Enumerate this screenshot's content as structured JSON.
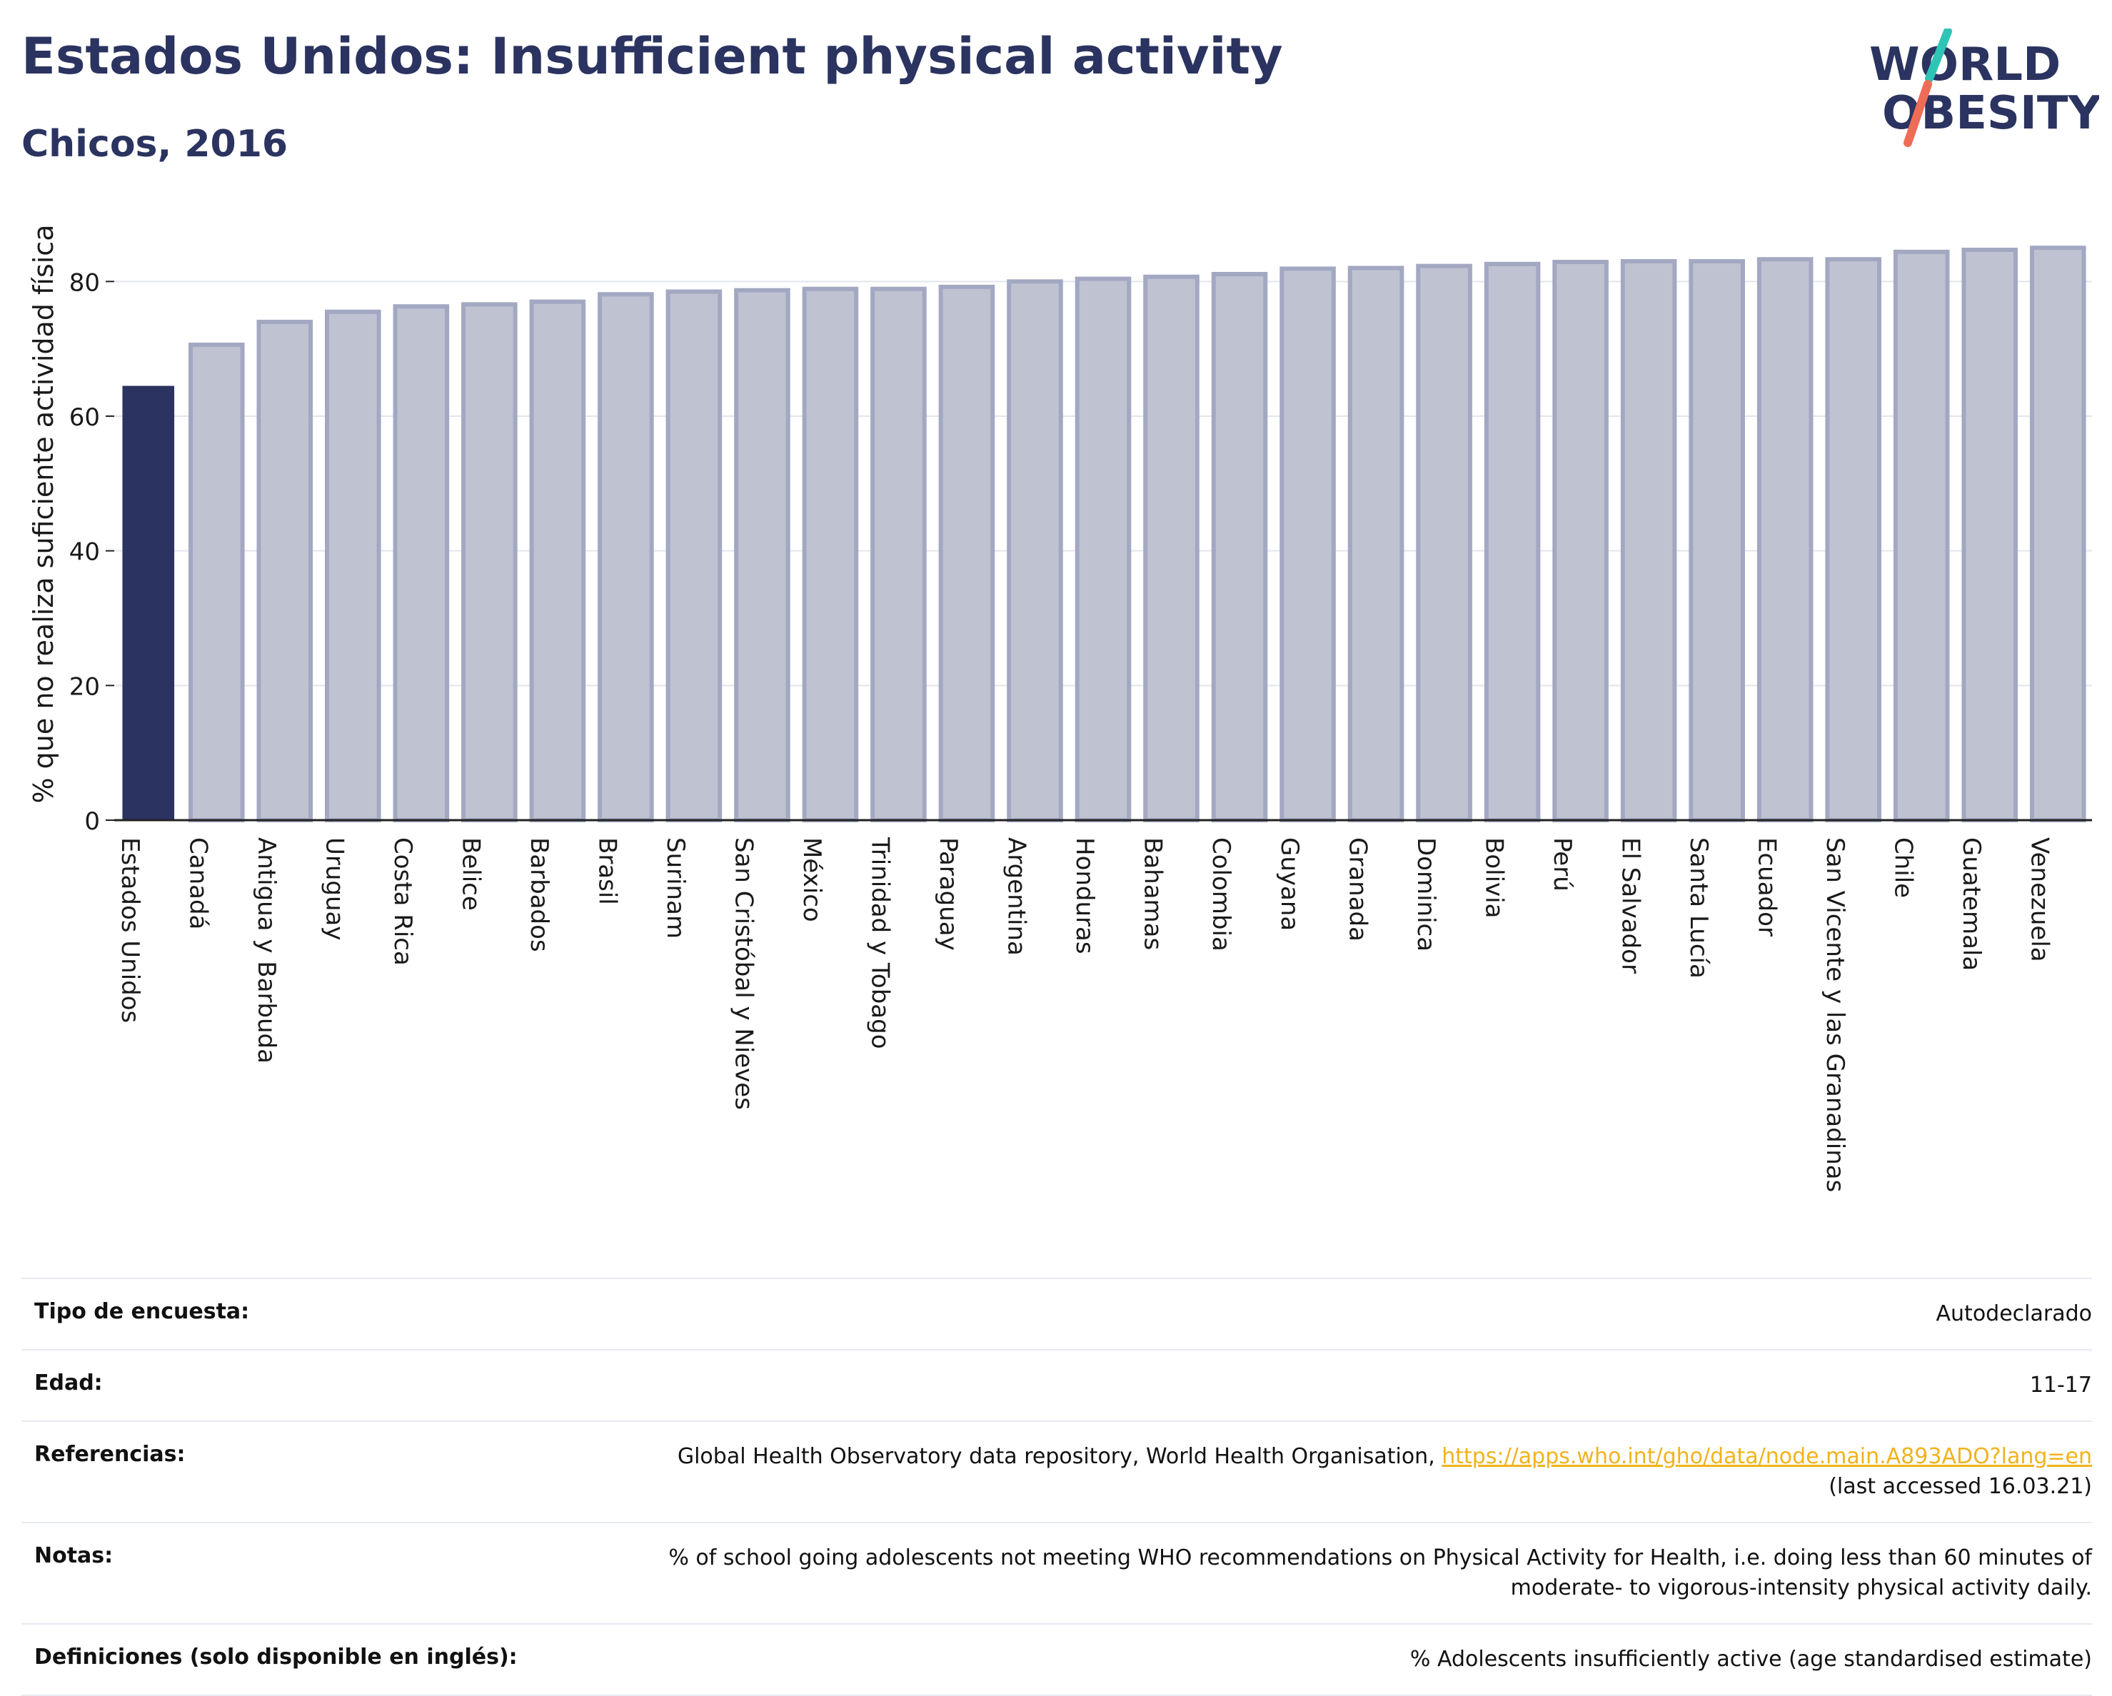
{
  "header": {
    "title": "Estados Unidos: Insufficient physical activity",
    "subtitle": "Chicos, 2016"
  },
  "logo": {
    "line1": "WORLD",
    "line2": "OBESITY",
    "text_color": "#2b3360",
    "slash_top": "#2ec4b6",
    "slash_bottom": "#ef6c57"
  },
  "colors": {
    "highlight": "#2b3360",
    "bar_fill": "#bfc2d1",
    "bar_stroke": "#a3a8c2",
    "grid": "#e3e5ee",
    "link": "#f0b31c"
  },
  "chart_data": {
    "type": "bar",
    "title": "Estados Unidos: Insufficient physical activity",
    "subtitle": "Chicos, 2016",
    "ylabel": "% que no realiza suficiente actividad física",
    "xlabel": "",
    "ylim": [
      0,
      90
    ],
    "yticks": [
      0,
      20,
      40,
      60,
      80
    ],
    "grid": true,
    "highlight_category": "Estados Unidos",
    "categories": [
      "Estados Unidos",
      "Canadá",
      "Antigua y Barbuda",
      "Uruguay",
      "Costa Rica",
      "Belice",
      "Barbados",
      "Brasil",
      "Surinam",
      "San Cristóbal y Nieves",
      "México",
      "Trinidad y Tobago",
      "Paraguay",
      "Argentina",
      "Honduras",
      "Bahamas",
      "Colombia",
      "Guyana",
      "Granada",
      "Dominica",
      "Bolivia",
      "Perú",
      "El Salvador",
      "Santa Lucía",
      "Ecuador",
      "San Vicente y las Granadinas",
      "Chile",
      "Guatemala",
      "Venezuela"
    ],
    "values": [
      64.5,
      70.6,
      74.0,
      75.5,
      76.3,
      76.6,
      77.0,
      78.1,
      78.5,
      78.7,
      78.9,
      78.9,
      79.2,
      80.0,
      80.4,
      80.7,
      81.1,
      81.9,
      82.0,
      82.3,
      82.6,
      82.9,
      83.0,
      83.0,
      83.3,
      83.3,
      84.4,
      84.7,
      85.0
    ]
  },
  "metadata": [
    {
      "label": "Tipo de encuesta:",
      "value": "Autodeclarado"
    },
    {
      "label": "Edad:",
      "value": "11-17"
    },
    {
      "label": "Referencias:",
      "value_prefix": "Global Health Observatory data repository, World Health Organisation, ",
      "link": "https://apps.who.int/gho/data/node.main.A893ADO?lang=en",
      "value_suffix": "(last accessed 16.03.21)"
    },
    {
      "label": "Notas:",
      "value_line1": "% of school going adolescents not meeting WHO recommendations on Physical Activity for Health, i.e. doing less than 60 minutes of",
      "value_line2": "moderate- to vigorous-intensity physical activity daily."
    },
    {
      "label": "Definiciones (solo disponible en inglés):",
      "value": "% Adolescents insufficiently active (age standardised estimate)"
    }
  ]
}
